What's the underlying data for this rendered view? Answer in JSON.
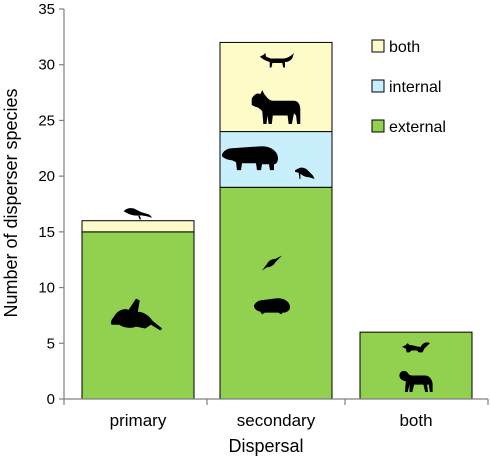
{
  "chart_data": {
    "type": "bar",
    "stacked": true,
    "categories": [
      "primary",
      "secondary",
      "both"
    ],
    "series": [
      {
        "name": "external",
        "color": "#92d050",
        "values": [
          15,
          19,
          6
        ]
      },
      {
        "name": "internal",
        "color": "#c9eefc",
        "values": [
          0,
          5,
          0
        ]
      },
      {
        "name": "both",
        "color": "#fdfbc8",
        "values": [
          1,
          8,
          0
        ]
      }
    ],
    "xlabel": "Dispersal",
    "ylabel": "Number of disperser species",
    "ylim": [
      0,
      35
    ],
    "yticks": [
      0,
      5,
      10,
      15,
      20,
      25,
      30,
      35
    ],
    "grid": false,
    "legend": "top-right",
    "animal_icons": [
      {
        "name": "toucan-icon",
        "category": 0,
        "y": 16.7
      },
      {
        "name": "parrot-icon",
        "category": 0,
        "y": 7.5
      },
      {
        "name": "fox-icon",
        "category": 1,
        "y": 30.4
      },
      {
        "name": "cattle-icon",
        "category": 1,
        "y": 26.2
      },
      {
        "name": "tapir-icon",
        "category": 1,
        "y": 21.7
      },
      {
        "name": "bird-icon",
        "category": 1,
        "y": 20.3
      },
      {
        "name": "small-bird-icon",
        "category": 1,
        "y": 12.2
      },
      {
        "name": "rodent-icon",
        "category": 1,
        "y": 8.4
      },
      {
        "name": "squirrel-icon",
        "category": 2,
        "y": 4.6
      },
      {
        "name": "monkey-icon",
        "category": 2,
        "y": 1.7
      }
    ]
  }
}
